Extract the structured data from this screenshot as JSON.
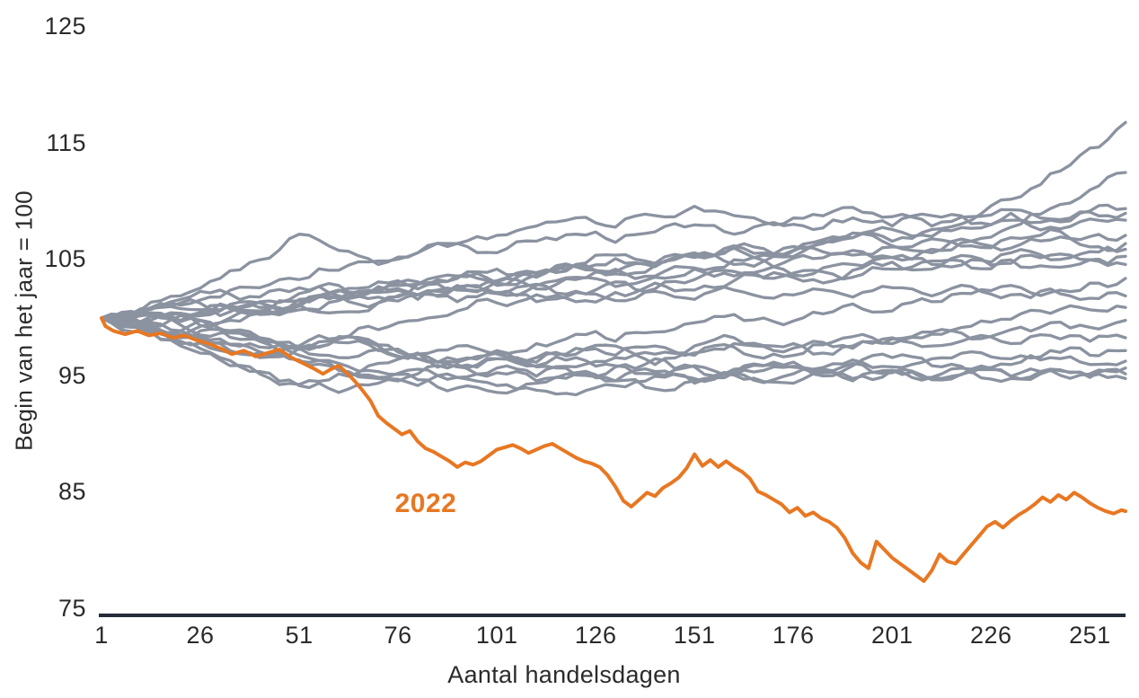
{
  "page": {
    "background": "#ffffff"
  },
  "chart_data": {
    "type": "line",
    "title": "",
    "xlabel": "Aantal handelsdagen",
    "ylabel": "Begin van het jaar = 100",
    "x_ticks": [
      1,
      26,
      51,
      76,
      101,
      126,
      151,
      176,
      201,
      226,
      251
    ],
    "y_ticks": [
      75,
      85,
      95,
      105,
      115,
      125
    ],
    "xlim": [
      1,
      260
    ],
    "ylim": [
      75,
      125
    ],
    "grid": false,
    "legend_position": "none",
    "colors": {
      "highlight": "#e87722",
      "history": "#8b92a0",
      "axis": "#242c39",
      "text": "#2b2b2b"
    },
    "annotation": {
      "text": "2022",
      "day": 83,
      "value": 84.0
    },
    "highlight_series": {
      "name": "2022",
      "points": [
        [
          1,
          100.0
        ],
        [
          2,
          99.3
        ],
        [
          4,
          98.9
        ],
        [
          7,
          98.6
        ],
        [
          10,
          98.9
        ],
        [
          13,
          98.5
        ],
        [
          16,
          98.7
        ],
        [
          19,
          98.3
        ],
        [
          22,
          98.5
        ],
        [
          25,
          98.1
        ],
        [
          28,
          97.8
        ],
        [
          31,
          97.4
        ],
        [
          34,
          96.9
        ],
        [
          37,
          97.2
        ],
        [
          40,
          96.7
        ],
        [
          43,
          97.0
        ],
        [
          46,
          97.3
        ],
        [
          49,
          96.6
        ],
        [
          52,
          96.1
        ],
        [
          55,
          95.6
        ],
        [
          57,
          95.2
        ],
        [
          59,
          95.6
        ],
        [
          61,
          95.9
        ],
        [
          63,
          95.3
        ],
        [
          65,
          94.6
        ],
        [
          67,
          93.8
        ],
        [
          69,
          92.9
        ],
        [
          71,
          91.6
        ],
        [
          73,
          91.0
        ],
        [
          75,
          90.5
        ],
        [
          77,
          90.0
        ],
        [
          79,
          90.3
        ],
        [
          81,
          89.4
        ],
        [
          83,
          88.8
        ],
        [
          85,
          88.5
        ],
        [
          87,
          88.1
        ],
        [
          89,
          87.7
        ],
        [
          91,
          87.2
        ],
        [
          93,
          87.6
        ],
        [
          95,
          87.4
        ],
        [
          97,
          87.7
        ],
        [
          99,
          88.2
        ],
        [
          101,
          88.7
        ],
        [
          103,
          88.9
        ],
        [
          105,
          89.1
        ],
        [
          107,
          88.8
        ],
        [
          109,
          88.4
        ],
        [
          111,
          88.7
        ],
        [
          113,
          89.0
        ],
        [
          115,
          89.2
        ],
        [
          117,
          88.8
        ],
        [
          119,
          88.4
        ],
        [
          121,
          88.0
        ],
        [
          123,
          87.7
        ],
        [
          125,
          87.5
        ],
        [
          127,
          87.2
        ],
        [
          129,
          86.5
        ],
        [
          131,
          85.5
        ],
        [
          133,
          84.3
        ],
        [
          135,
          83.8
        ],
        [
          137,
          84.4
        ],
        [
          139,
          85.0
        ],
        [
          141,
          84.7
        ],
        [
          143,
          85.4
        ],
        [
          145,
          85.8
        ],
        [
          147,
          86.3
        ],
        [
          149,
          87.1
        ],
        [
          151,
          88.3
        ],
        [
          153,
          87.3
        ],
        [
          155,
          87.8
        ],
        [
          157,
          87.2
        ],
        [
          159,
          87.7
        ],
        [
          161,
          87.2
        ],
        [
          163,
          86.8
        ],
        [
          165,
          86.2
        ],
        [
          167,
          85.1
        ],
        [
          169,
          84.8
        ],
        [
          171,
          84.4
        ],
        [
          173,
          84.0
        ],
        [
          175,
          83.3
        ],
        [
          177,
          83.7
        ],
        [
          179,
          83.0
        ],
        [
          181,
          83.3
        ],
        [
          183,
          82.8
        ],
        [
          185,
          82.5
        ],
        [
          187,
          82.0
        ],
        [
          189,
          81.1
        ],
        [
          191,
          79.8
        ],
        [
          193,
          79.0
        ],
        [
          195,
          78.5
        ],
        [
          197,
          80.8
        ],
        [
          199,
          80.1
        ],
        [
          201,
          79.4
        ],
        [
          203,
          78.9
        ],
        [
          205,
          78.4
        ],
        [
          207,
          77.9
        ],
        [
          209,
          77.4
        ],
        [
          211,
          78.3
        ],
        [
          213,
          79.7
        ],
        [
          215,
          79.1
        ],
        [
          217,
          78.9
        ],
        [
          219,
          79.7
        ],
        [
          221,
          80.5
        ],
        [
          223,
          81.3
        ],
        [
          225,
          82.1
        ],
        [
          227,
          82.5
        ],
        [
          229,
          82.0
        ],
        [
          231,
          82.6
        ],
        [
          233,
          83.1
        ],
        [
          235,
          83.5
        ],
        [
          237,
          84.0
        ],
        [
          239,
          84.6
        ],
        [
          241,
          84.2
        ],
        [
          243,
          84.8
        ],
        [
          245,
          84.4
        ],
        [
          247,
          85.0
        ],
        [
          249,
          84.6
        ],
        [
          251,
          84.1
        ],
        [
          253,
          83.7
        ],
        [
          255,
          83.4
        ],
        [
          257,
          83.2
        ],
        [
          259,
          83.5
        ],
        [
          260,
          83.4
        ]
      ]
    },
    "history_days": [
      1,
      11,
      21,
      31,
      41,
      51,
      61,
      71,
      81,
      91,
      101,
      111,
      121,
      131,
      141,
      151,
      161,
      171,
      181,
      191,
      201,
      211,
      221,
      231,
      241,
      251,
      260
    ],
    "history_series": [
      {
        "values": [
          100,
          100.3,
          100.8,
          100.2,
          100.9,
          101.6,
          102.4,
          101.8,
          102.9,
          103.6,
          102.8,
          103.9,
          104.6,
          105.4,
          104.7,
          105.6,
          106.2,
          105.5,
          106.5,
          107.3,
          106.6,
          107.6,
          108.4,
          110.2,
          112.4,
          114.6,
          116.8
        ]
      },
      {
        "values": [
          100,
          99.6,
          100.4,
          101.2,
          100.6,
          101.5,
          102.3,
          103.1,
          102.5,
          103.4,
          104.2,
          103.5,
          104.4,
          105.1,
          104.4,
          105.3,
          106.0,
          105.3,
          106.2,
          106.9,
          106.2,
          105.6,
          106.6,
          107.8,
          109.4,
          111.0,
          112.5
        ]
      },
      {
        "values": [
          100,
          100.7,
          101.9,
          103.4,
          105.0,
          107.2,
          105.8,
          104.6,
          105.6,
          106.4,
          105.6,
          106.6,
          107.2,
          106.5,
          107.4,
          108.0,
          107.2,
          108.2,
          107.6,
          108.6,
          107.9,
          108.8,
          108.1,
          109.0,
          108.4,
          109.2,
          109.4
        ]
      },
      {
        "values": [
          100,
          100.5,
          101.1,
          101.8,
          102.6,
          103.3,
          104.1,
          104.9,
          105.6,
          106.4,
          107.1,
          107.9,
          108.6,
          107.8,
          108.8,
          109.6,
          108.8,
          108.0,
          108.9,
          109.5,
          108.7,
          107.9,
          108.7,
          109.3,
          108.5,
          109.1,
          109.0
        ]
      },
      {
        "values": [
          100,
          99.4,
          98.9,
          99.6,
          100.3,
          101.0,
          101.7,
          102.4,
          103.1,
          102.5,
          103.2,
          103.9,
          104.6,
          104.0,
          104.7,
          105.4,
          106.1,
          105.5,
          106.2,
          106.9,
          107.6,
          107.0,
          107.7,
          108.4,
          107.8,
          108.5,
          108.4
        ]
      },
      {
        "values": [
          100,
          100.6,
          101.3,
          100.7,
          101.4,
          102.1,
          102.8,
          102.2,
          102.9,
          103.6,
          103.0,
          103.7,
          104.4,
          103.8,
          104.5,
          105.2,
          104.6,
          105.3,
          106.0,
          105.4,
          106.1,
          106.8,
          106.2,
          106.9,
          107.6,
          107.0,
          107.1
        ]
      },
      {
        "values": [
          100,
          99.7,
          100.4,
          101.1,
          100.5,
          101.2,
          101.9,
          101.3,
          102.0,
          102.7,
          102.1,
          102.8,
          103.5,
          104.2,
          103.6,
          104.3,
          105.0,
          104.4,
          105.1,
          105.8,
          105.2,
          105.9,
          106.6,
          106.0,
          106.7,
          106.1,
          106.4
        ]
      },
      {
        "values": [
          100,
          99.0,
          98.0,
          97.2,
          96.6,
          97.4,
          98.2,
          99.0,
          99.8,
          100.6,
          101.3,
          102.0,
          101.4,
          102.2,
          103.0,
          102.4,
          103.2,
          103.9,
          103.3,
          104.1,
          104.8,
          104.2,
          105.0,
          105.6,
          105.0,
          105.7,
          105.9
        ]
      },
      {
        "values": [
          100,
          100.4,
          99.8,
          100.6,
          101.3,
          100.7,
          101.5,
          102.2,
          101.6,
          102.4,
          103.1,
          102.5,
          103.3,
          102.7,
          103.5,
          104.2,
          103.6,
          104.4,
          103.8,
          104.6,
          105.2,
          104.6,
          105.3,
          104.7,
          105.4,
          105.0,
          105.3
        ]
      },
      {
        "values": [
          100,
          99.5,
          100.2,
          99.6,
          100.4,
          101.1,
          100.5,
          101.3,
          102.0,
          101.4,
          102.2,
          102.9,
          102.3,
          103.1,
          102.5,
          103.3,
          104.0,
          103.4,
          104.1,
          103.5,
          104.2,
          104.9,
          104.3,
          105.0,
          104.4,
          105.0,
          104.6
        ]
      },
      {
        "values": [
          100,
          99.2,
          98.4,
          99.1,
          98.3,
          97.6,
          98.4,
          97.7,
          96.9,
          96.2,
          97.0,
          97.8,
          98.6,
          98.0,
          98.8,
          99.6,
          100.3,
          99.7,
          100.5,
          101.2,
          100.6,
          101.4,
          102.1,
          102.8,
          102.2,
          103.0,
          103.4
        ]
      },
      {
        "values": [
          100,
          100.8,
          101.6,
          102.4,
          101.8,
          102.6,
          101.9,
          102.7,
          102.0,
          102.8,
          102.1,
          101.4,
          102.2,
          101.5,
          102.3,
          101.6,
          102.4,
          101.7,
          102.5,
          101.8,
          102.6,
          101.9,
          102.7,
          102.0,
          102.5,
          101.7,
          101.9
        ]
      },
      {
        "values": [
          100,
          99.3,
          98.5,
          97.8,
          97.0,
          96.3,
          95.5,
          94.8,
          94.2,
          94.9,
          95.7,
          95.0,
          95.8,
          96.6,
          96.0,
          96.8,
          97.5,
          96.9,
          97.7,
          98.4,
          97.8,
          98.6,
          99.3,
          99.9,
          100.4,
          100.7,
          100.9
        ]
      },
      {
        "values": [
          100,
          98.8,
          97.6,
          96.4,
          95.2,
          94.3,
          95.2,
          96.1,
          97.0,
          96.4,
          97.2,
          96.6,
          97.4,
          96.8,
          97.6,
          97.0,
          97.8,
          97.2,
          98.0,
          97.4,
          98.2,
          98.8,
          98.2,
          99.0,
          99.6,
          99.2,
          99.8
        ]
      },
      {
        "values": [
          100,
          100.4,
          99.7,
          99.0,
          98.3,
          97.6,
          98.3,
          97.6,
          96.9,
          97.6,
          96.9,
          96.2,
          96.9,
          97.6,
          96.9,
          97.6,
          98.3,
          97.6,
          96.9,
          97.6,
          98.3,
          97.6,
          98.3,
          97.8,
          98.5,
          98.0,
          98.3
        ]
      },
      {
        "values": [
          100,
          99.6,
          98.9,
          98.2,
          97.5,
          96.8,
          96.1,
          95.4,
          94.7,
          94.0,
          93.6,
          94.4,
          95.2,
          94.6,
          95.4,
          94.8,
          95.6,
          96.2,
          95.6,
          96.4,
          95.8,
          96.5,
          97.1,
          96.5,
          97.2,
          96.8,
          97.2
        ]
      },
      {
        "values": [
          100,
          99.1,
          98.3,
          99.0,
          98.2,
          97.4,
          96.6,
          97.3,
          96.5,
          95.8,
          96.5,
          95.8,
          95.1,
          95.8,
          96.5,
          95.8,
          95.1,
          95.8,
          95.2,
          95.9,
          96.6,
          95.9,
          95.3,
          96.0,
          96.6,
          96.0,
          96.3
        ]
      },
      {
        "values": [
          100,
          99.4,
          98.6,
          97.9,
          97.1,
          96.4,
          95.6,
          94.9,
          95.6,
          94.9,
          94.2,
          93.8,
          93.4,
          94.2,
          95.0,
          94.4,
          95.1,
          94.5,
          95.2,
          94.6,
          95.3,
          94.7,
          95.4,
          94.8,
          95.5,
          95.2,
          95.7
        ]
      },
      {
        "values": [
          100,
          100.2,
          99.4,
          98.7,
          98.0,
          97.3,
          97.9,
          97.2,
          96.5,
          95.8,
          96.5,
          95.9,
          96.6,
          95.9,
          95.2,
          95.9,
          95.3,
          96.0,
          95.4,
          96.1,
          95.5,
          94.9,
          95.6,
          95.0,
          95.6,
          94.9,
          95.2
        ]
      },
      {
        "values": [
          100,
          99.0,
          97.8,
          96.6,
          95.4,
          94.2,
          93.6,
          94.4,
          95.2,
          96.0,
          95.3,
          94.6,
          95.3,
          94.6,
          93.9,
          94.6,
          95.3,
          94.7,
          95.4,
          94.8,
          95.5,
          94.9,
          95.6,
          95.0,
          95.6,
          95.0,
          94.8
        ]
      }
    ]
  }
}
